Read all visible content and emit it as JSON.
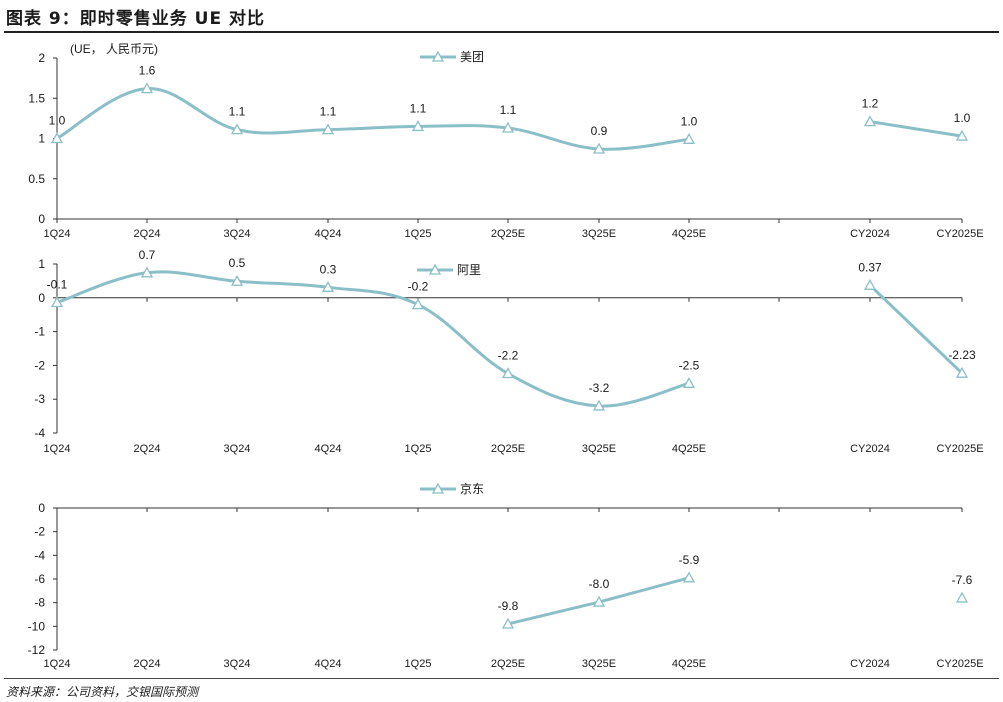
{
  "header": {
    "title": "图表 9：即时零售业务 UE 对比"
  },
  "footer": {
    "source": "资料来源：公司资料，交银国际预测"
  },
  "style": {
    "line_color": "#8bbfc8",
    "axis_color": "#333333",
    "text_color": "#1a1a1a"
  },
  "chart_data": [
    {
      "type": "line",
      "unit_label": "(UE， 人民币元)",
      "categories": [
        "1Q24",
        "2Q24",
        "3Q24",
        "4Q24",
        "1Q25",
        "2Q25E",
        "3Q25E",
        "4Q25E",
        "",
        "CY2024",
        "CY2025E"
      ],
      "series": [
        {
          "name": "美团",
          "values": [
            1.0,
            1.6,
            1.1,
            1.1,
            1.1,
            1.1,
            0.9,
            1.0,
            null,
            1.2,
            1.0
          ],
          "plot_values": [
            1.0,
            1.62,
            1.11,
            1.11,
            1.15,
            1.13,
            0.87,
            0.99,
            null,
            1.21,
            1.03
          ]
        }
      ],
      "data_labels": [
        "1.0",
        "1.6",
        "1.1",
        "1.1",
        "1.1",
        "1.1",
        "0.9",
        "1.0",
        null,
        "1.2",
        "1.0"
      ],
      "y_ticks": [
        "0",
        "0.5",
        "1",
        "1.5",
        "2"
      ],
      "ylim": [
        0,
        2
      ]
    },
    {
      "type": "line",
      "categories": [
        "1Q24",
        "2Q24",
        "3Q24",
        "4Q24",
        "1Q25",
        "2Q25E",
        "3Q25E",
        "4Q25E",
        "",
        "CY2024",
        "CY2025E"
      ],
      "series": [
        {
          "name": "阿里",
          "values": [
            -0.1,
            0.7,
            0.5,
            0.3,
            -0.2,
            -2.2,
            -3.2,
            -2.5,
            null,
            0.37,
            -2.23
          ],
          "plot_values": [
            -0.14,
            0.74,
            0.49,
            0.31,
            -0.2,
            -2.24,
            -3.2,
            -2.53,
            null,
            0.37,
            -2.23
          ]
        }
      ],
      "data_labels": [
        "-0.1",
        "0.7",
        "0.5",
        "0.3",
        "-0.2",
        "-2.2",
        "-3.2",
        "-2.5",
        null,
        "0.37",
        "-2.23"
      ],
      "y_ticks": [
        "-4",
        "-3",
        "-2",
        "-1",
        "0",
        "1"
      ],
      "ylim": [
        -4,
        1
      ]
    },
    {
      "type": "line",
      "categories": [
        "1Q24",
        "2Q24",
        "3Q24",
        "4Q24",
        "1Q25",
        "2Q25E",
        "3Q25E",
        "4Q25E",
        "",
        "CY2024",
        "CY2025E"
      ],
      "series": [
        {
          "name": "京东",
          "values": [
            null,
            null,
            null,
            null,
            null,
            -9.8,
            -8.0,
            -5.9,
            null,
            null,
            -7.6
          ],
          "plot_values": [
            null,
            null,
            null,
            null,
            null,
            -9.8,
            -7.95,
            -5.9,
            null,
            null,
            -7.6
          ]
        }
      ],
      "data_labels": [
        null,
        null,
        null,
        null,
        null,
        "-9.8",
        "-8.0",
        "-5.9",
        null,
        null,
        "-7.6"
      ],
      "y_ticks": [
        "-12",
        "-10",
        "-8",
        "-6",
        "-4",
        "-2",
        "0"
      ],
      "ylim": [
        -12,
        0
      ]
    }
  ]
}
